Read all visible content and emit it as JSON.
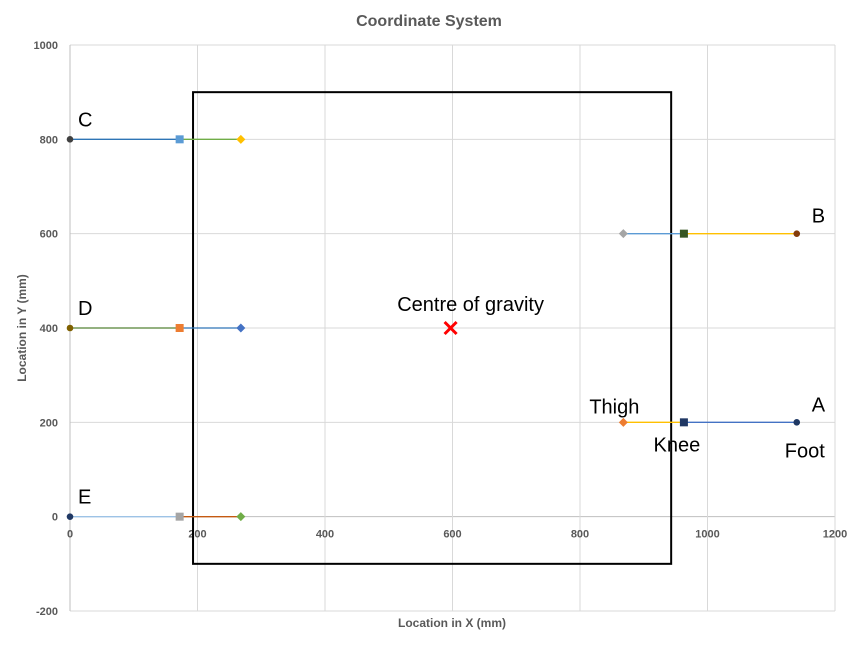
{
  "chart_data": {
    "type": "scatter",
    "title": "Coordinate System",
    "xlabel": "Location in X (mm)",
    "ylabel": "Location in Y (mm)",
    "xlim": [
      0,
      1200
    ],
    "ylim": [
      -200,
      1000
    ],
    "xticks": [
      0,
      200,
      400,
      600,
      800,
      1000,
      1200
    ],
    "yticks": [
      -200,
      0,
      200,
      400,
      600,
      800,
      1000
    ],
    "grid": true,
    "legend": "none",
    "limbs": [
      {
        "label": "A",
        "points": [
          {
            "x": 1140,
            "y": 200,
            "marker": "circle",
            "color": "#1f3864"
          },
          {
            "x": 963,
            "y": 200,
            "marker": "square",
            "color": "#203864"
          },
          {
            "x": 868,
            "y": 200,
            "marker": "diamond",
            "color": "#ed7d31"
          }
        ],
        "segments": [
          {
            "from": 0,
            "to": 1,
            "color": "#4472c4"
          },
          {
            "from": 1,
            "to": 2,
            "color": "#ffc000"
          }
        ]
      },
      {
        "label": "B",
        "points": [
          {
            "x": 1140,
            "y": 600,
            "marker": "circle",
            "color": "#843c0c"
          },
          {
            "x": 963,
            "y": 600,
            "marker": "square",
            "color": "#375623"
          },
          {
            "x": 868,
            "y": 600,
            "marker": "diamond",
            "color": "#a5a5a5"
          }
        ],
        "segments": [
          {
            "from": 0,
            "to": 1,
            "color": "#ffc000"
          },
          {
            "from": 1,
            "to": 2,
            "color": "#5b9bd5"
          }
        ]
      },
      {
        "label": "C",
        "points": [
          {
            "x": 0,
            "y": 800,
            "marker": "circle",
            "color": "#404040"
          },
          {
            "x": 172,
            "y": 800,
            "marker": "square",
            "color": "#5b9bd5"
          },
          {
            "x": 268,
            "y": 800,
            "marker": "diamond",
            "color": "#ffc000"
          }
        ],
        "segments": [
          {
            "from": 0,
            "to": 1,
            "color": "#2e75b6"
          },
          {
            "from": 1,
            "to": 2,
            "color": "#70ad47"
          }
        ]
      },
      {
        "label": "D",
        "points": [
          {
            "x": 0,
            "y": 400,
            "marker": "circle",
            "color": "#7f6000"
          },
          {
            "x": 172,
            "y": 400,
            "marker": "square",
            "color": "#ed7d31"
          },
          {
            "x": 268,
            "y": 400,
            "marker": "diamond",
            "color": "#4472c4"
          }
        ],
        "segments": [
          {
            "from": 0,
            "to": 1,
            "color": "#548235"
          },
          {
            "from": 1,
            "to": 2,
            "color": "#2e75b6"
          }
        ]
      },
      {
        "label": "E",
        "points": [
          {
            "x": 0,
            "y": 0,
            "marker": "circle",
            "color": "#203864"
          },
          {
            "x": 172,
            "y": 0,
            "marker": "square",
            "color": "#a5a5a5"
          },
          {
            "x": 268,
            "y": 0,
            "marker": "diamond",
            "color": "#70ad47"
          }
        ],
        "segments": [
          {
            "from": 0,
            "to": 1,
            "color": "#9dc3e6"
          },
          {
            "from": 1,
            "to": 2,
            "color": "#c55a11"
          }
        ]
      }
    ],
    "centre_of_gravity": {
      "x": 597,
      "y": 400,
      "marker": "x",
      "color": "#ff0000",
      "label": "Centre of gravity"
    },
    "body_box": {
      "x0": 193,
      "x1": 943,
      "y0": -100,
      "y1": 900,
      "color": "#000000"
    },
    "annotations": [
      {
        "text": "Thigh",
        "x": 868,
        "y": 200
      },
      {
        "text": "Knee",
        "x": 963,
        "y": 200
      },
      {
        "text": "Foot",
        "x": 1140,
        "y": 200
      }
    ]
  }
}
